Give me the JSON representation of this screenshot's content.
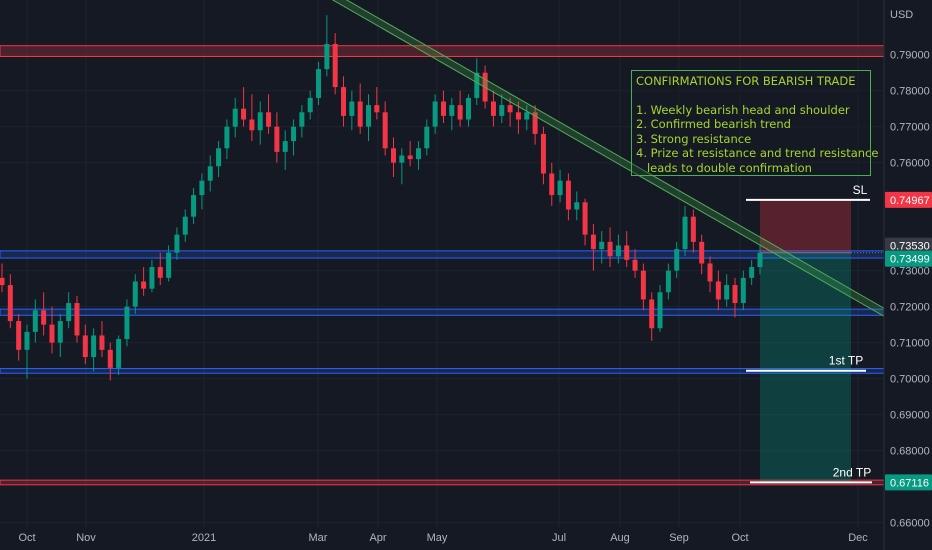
{
  "chart_data": {
    "type": "candlestick",
    "currency_label": "USD",
    "x_ticks": [
      "Oct",
      "Nov",
      "2021",
      "Mar",
      "Apr",
      "May",
      "Jul",
      "Aug",
      "Sep",
      "Oct",
      "Dec"
    ],
    "y_ticks": [
      "0.79000",
      "0.78000",
      "0.77000",
      "0.76000",
      "0.73000",
      "0.72000",
      "0.71000",
      "0.70000",
      "0.69000",
      "0.68000",
      "0.66000"
    ],
    "ylim": [
      0.6585,
      0.8052
    ],
    "price_badges": [
      {
        "label": "0.74967",
        "value": 0.74967,
        "color": "#f23645"
      },
      {
        "label": "0.73530",
        "value": 0.7353,
        "color": "#363a45"
      },
      {
        "label": "0.73499",
        "value": 0.73499,
        "color": "#089981"
      },
      {
        "label": "0.67116",
        "value": 0.67116,
        "color": "#089981"
      }
    ],
    "resistance_zones": [
      {
        "low": 0.7895,
        "high": 0.7925,
        "color": "#f23645"
      },
      {
        "low": 0.6705,
        "high": 0.6718,
        "color": "#f23645"
      }
    ],
    "support_zones": [
      {
        "low": 0.7335,
        "high": 0.7355,
        "color": "#2962ff"
      },
      {
        "low": 0.7176,
        "high": 0.7193,
        "color": "#2962ff"
      },
      {
        "low": 0.7015,
        "high": 0.7028,
        "color": "#2962ff"
      }
    ],
    "trend_resistance": {
      "start": [
        "Sep 2020",
        0.807
      ],
      "end": [
        "Dec 2021",
        0.719
      ],
      "color": "#4caf50"
    },
    "position": {
      "entry": 0.73499,
      "stop_loss": 0.74967,
      "target": 0.67116
    },
    "annotations": [
      {
        "label": "SL",
        "value": 0.74967
      },
      {
        "label": "1st TP",
        "value": 0.7022
      },
      {
        "label": "2nd TP",
        "value": 0.67116
      }
    ],
    "candles": [
      {
        "x": "Sep 2020",
        "o": 0.728,
        "h": 0.732,
        "l": 0.724,
        "c": 0.726
      },
      {
        "x": "Sep 2020",
        "o": 0.726,
        "h": 0.729,
        "l": 0.714,
        "c": 0.716
      },
      {
        "x": "Sep 2020",
        "o": 0.716,
        "h": 0.718,
        "l": 0.705,
        "c": 0.708
      },
      {
        "x": "Oct 2020",
        "o": 0.708,
        "h": 0.715,
        "l": 0.7,
        "c": 0.713
      },
      {
        "x": "Oct 2020",
        "o": 0.713,
        "h": 0.722,
        "l": 0.71,
        "c": 0.719
      },
      {
        "x": "Oct 2020",
        "o": 0.719,
        "h": 0.724,
        "l": 0.712,
        "c": 0.715
      },
      {
        "x": "Oct 2020",
        "o": 0.715,
        "h": 0.72,
        "l": 0.707,
        "c": 0.71
      },
      {
        "x": "Oct 2020",
        "o": 0.71,
        "h": 0.718,
        "l": 0.706,
        "c": 0.716
      },
      {
        "x": "Oct 2020",
        "o": 0.716,
        "h": 0.724,
        "l": 0.714,
        "c": 0.721
      },
      {
        "x": "Oct 2020",
        "o": 0.721,
        "h": 0.723,
        "l": 0.71,
        "c": 0.712
      },
      {
        "x": "Oct 2020",
        "o": 0.712,
        "h": 0.715,
        "l": 0.704,
        "c": 0.706
      },
      {
        "x": "Oct 2020",
        "o": 0.706,
        "h": 0.714,
        "l": 0.702,
        "c": 0.712
      },
      {
        "x": "Nov 2020",
        "o": 0.712,
        "h": 0.716,
        "l": 0.706,
        "c": 0.708
      },
      {
        "x": "Nov 2020",
        "o": 0.708,
        "h": 0.71,
        "l": 0.6995,
        "c": 0.703
      },
      {
        "x": "Nov 2020",
        "o": 0.703,
        "h": 0.712,
        "l": 0.701,
        "c": 0.711
      },
      {
        "x": "Nov 2020",
        "o": 0.711,
        "h": 0.722,
        "l": 0.709,
        "c": 0.72
      },
      {
        "x": "Nov 2020",
        "o": 0.72,
        "h": 0.729,
        "l": 0.718,
        "c": 0.727
      },
      {
        "x": "Nov 2020",
        "o": 0.727,
        "h": 0.731,
        "l": 0.723,
        "c": 0.725
      },
      {
        "x": "Nov 2020",
        "o": 0.725,
        "h": 0.733,
        "l": 0.724,
        "c": 0.731
      },
      {
        "x": "Nov 2020",
        "o": 0.731,
        "h": 0.735,
        "l": 0.726,
        "c": 0.728
      },
      {
        "x": "Dec 2020",
        "o": 0.728,
        "h": 0.737,
        "l": 0.727,
        "c": 0.735
      },
      {
        "x": "Dec 2020",
        "o": 0.735,
        "h": 0.742,
        "l": 0.733,
        "c": 0.74
      },
      {
        "x": "Dec 2020",
        "o": 0.74,
        "h": 0.747,
        "l": 0.738,
        "c": 0.745
      },
      {
        "x": "Dec 2020",
        "o": 0.745,
        "h": 0.753,
        "l": 0.743,
        "c": 0.751
      },
      {
        "x": "Dec 2020",
        "o": 0.751,
        "h": 0.757,
        "l": 0.747,
        "c": 0.755
      },
      {
        "x": "Dec 2020",
        "o": 0.755,
        "h": 0.762,
        "l": 0.752,
        "c": 0.759
      },
      {
        "x": "Dec 2020",
        "o": 0.759,
        "h": 0.766,
        "l": 0.756,
        "c": 0.764
      },
      {
        "x": "Jan 2021",
        "o": 0.764,
        "h": 0.772,
        "l": 0.761,
        "c": 0.77
      },
      {
        "x": "Jan 2021",
        "o": 0.77,
        "h": 0.778,
        "l": 0.767,
        "c": 0.775
      },
      {
        "x": "Jan 2021",
        "o": 0.775,
        "h": 0.781,
        "l": 0.77,
        "c": 0.772
      },
      {
        "x": "Jan 2021",
        "o": 0.772,
        "h": 0.779,
        "l": 0.766,
        "c": 0.769
      },
      {
        "x": "Jan 2021",
        "o": 0.769,
        "h": 0.777,
        "l": 0.765,
        "c": 0.774
      },
      {
        "x": "Jan 2021",
        "o": 0.774,
        "h": 0.779,
        "l": 0.768,
        "c": 0.77
      },
      {
        "x": "Jan 2021",
        "o": 0.77,
        "h": 0.774,
        "l": 0.76,
        "c": 0.763
      },
      {
        "x": "Feb 2021",
        "o": 0.763,
        "h": 0.769,
        "l": 0.758,
        "c": 0.766
      },
      {
        "x": "Feb 2021",
        "o": 0.766,
        "h": 0.772,
        "l": 0.762,
        "c": 0.77
      },
      {
        "x": "Feb 2021",
        "o": 0.77,
        "h": 0.776,
        "l": 0.767,
        "c": 0.774
      },
      {
        "x": "Feb 2021",
        "o": 0.774,
        "h": 0.78,
        "l": 0.772,
        "c": 0.778
      },
      {
        "x": "Feb 2021",
        "o": 0.778,
        "h": 0.788,
        "l": 0.776,
        "c": 0.786
      },
      {
        "x": "Feb 2021",
        "o": 0.786,
        "h": 0.801,
        "l": 0.784,
        "c": 0.793
      },
      {
        "x": "Mar 2021",
        "o": 0.793,
        "h": 0.796,
        "l": 0.779,
        "c": 0.781
      },
      {
        "x": "Mar 2021",
        "o": 0.781,
        "h": 0.784,
        "l": 0.77,
        "c": 0.773
      },
      {
        "x": "Mar 2021",
        "o": 0.773,
        "h": 0.78,
        "l": 0.769,
        "c": 0.777
      },
      {
        "x": "Mar 2021",
        "o": 0.777,
        "h": 0.782,
        "l": 0.768,
        "c": 0.77
      },
      {
        "x": "Mar 2021",
        "o": 0.77,
        "h": 0.779,
        "l": 0.766,
        "c": 0.776
      },
      {
        "x": "Mar 2021",
        "o": 0.776,
        "h": 0.781,
        "l": 0.772,
        "c": 0.774
      },
      {
        "x": "Mar 2021",
        "o": 0.774,
        "h": 0.777,
        "l": 0.762,
        "c": 0.764
      },
      {
        "x": "Apr 2021",
        "o": 0.764,
        "h": 0.767,
        "l": 0.756,
        "c": 0.76
      },
      {
        "x": "Apr 2021",
        "o": 0.76,
        "h": 0.764,
        "l": 0.754,
        "c": 0.762
      },
      {
        "x": "Apr 2021",
        "o": 0.762,
        "h": 0.766,
        "l": 0.759,
        "c": 0.761
      },
      {
        "x": "Apr 2021",
        "o": 0.761,
        "h": 0.766,
        "l": 0.758,
        "c": 0.764
      },
      {
        "x": "Apr 2021",
        "o": 0.764,
        "h": 0.772,
        "l": 0.762,
        "c": 0.77
      },
      {
        "x": "Apr 2021",
        "o": 0.77,
        "h": 0.779,
        "l": 0.768,
        "c": 0.777
      },
      {
        "x": "Apr 2021",
        "o": 0.777,
        "h": 0.78,
        "l": 0.771,
        "c": 0.773
      },
      {
        "x": "May 2021",
        "o": 0.773,
        "h": 0.778,
        "l": 0.769,
        "c": 0.776
      },
      {
        "x": "May 2021",
        "o": 0.776,
        "h": 0.78,
        "l": 0.77,
        "c": 0.772
      },
      {
        "x": "May 2021",
        "o": 0.772,
        "h": 0.779,
        "l": 0.77,
        "c": 0.778
      },
      {
        "x": "May 2021",
        "o": 0.778,
        "h": 0.789,
        "l": 0.776,
        "c": 0.785
      },
      {
        "x": "May 2021",
        "o": 0.785,
        "h": 0.787,
        "l": 0.775,
        "c": 0.777
      },
      {
        "x": "May 2021",
        "o": 0.777,
        "h": 0.78,
        "l": 0.77,
        "c": 0.773
      },
      {
        "x": "May 2021",
        "o": 0.773,
        "h": 0.779,
        "l": 0.771,
        "c": 0.776
      },
      {
        "x": "Jun 2021",
        "o": 0.776,
        "h": 0.778,
        "l": 0.77,
        "c": 0.774
      },
      {
        "x": "Jun 2021",
        "o": 0.774,
        "h": 0.777,
        "l": 0.768,
        "c": 0.772
      },
      {
        "x": "Jun 2021",
        "o": 0.772,
        "h": 0.776,
        "l": 0.769,
        "c": 0.774
      },
      {
        "x": "Jun 2021",
        "o": 0.774,
        "h": 0.776,
        "l": 0.765,
        "c": 0.768
      },
      {
        "x": "Jun 2021",
        "o": 0.768,
        "h": 0.77,
        "l": 0.754,
        "c": 0.757
      },
      {
        "x": "Jun 2021",
        "o": 0.757,
        "h": 0.76,
        "l": 0.748,
        "c": 0.751
      },
      {
        "x": "Jul 2021",
        "o": 0.751,
        "h": 0.758,
        "l": 0.749,
        "c": 0.755
      },
      {
        "x": "Jul 2021",
        "o": 0.755,
        "h": 0.757,
        "l": 0.744,
        "c": 0.747
      },
      {
        "x": "Jul 2021",
        "o": 0.747,
        "h": 0.752,
        "l": 0.744,
        "c": 0.749
      },
      {
        "x": "Jul 2021",
        "o": 0.749,
        "h": 0.75,
        "l": 0.737,
        "c": 0.74
      },
      {
        "x": "Jul 2021",
        "o": 0.74,
        "h": 0.743,
        "l": 0.73,
        "c": 0.736
      },
      {
        "x": "Jul 2021",
        "o": 0.736,
        "h": 0.741,
        "l": 0.732,
        "c": 0.738
      },
      {
        "x": "Jul 2021",
        "o": 0.738,
        "h": 0.742,
        "l": 0.731,
        "c": 0.734
      },
      {
        "x": "Aug 2021",
        "o": 0.734,
        "h": 0.74,
        "l": 0.732,
        "c": 0.737
      },
      {
        "x": "Aug 2021",
        "o": 0.737,
        "h": 0.741,
        "l": 0.731,
        "c": 0.733
      },
      {
        "x": "Aug 2021",
        "o": 0.733,
        "h": 0.736,
        "l": 0.728,
        "c": 0.73
      },
      {
        "x": "Aug 2021",
        "o": 0.73,
        "h": 0.732,
        "l": 0.719,
        "c": 0.722
      },
      {
        "x": "Aug 2021",
        "o": 0.722,
        "h": 0.724,
        "l": 0.7105,
        "c": 0.714
      },
      {
        "x": "Aug 2021",
        "o": 0.714,
        "h": 0.726,
        "l": 0.713,
        "c": 0.724
      },
      {
        "x": "Aug 2021",
        "o": 0.724,
        "h": 0.732,
        "l": 0.722,
        "c": 0.73
      },
      {
        "x": "Sep 2021",
        "o": 0.73,
        "h": 0.738,
        "l": 0.728,
        "c": 0.736
      },
      {
        "x": "Sep 2021",
        "o": 0.736,
        "h": 0.748,
        "l": 0.734,
        "c": 0.745
      },
      {
        "x": "Sep 2021",
        "o": 0.745,
        "h": 0.747,
        "l": 0.735,
        "c": 0.738
      },
      {
        "x": "Sep 2021",
        "o": 0.738,
        "h": 0.74,
        "l": 0.729,
        "c": 0.732
      },
      {
        "x": "Sep 2021",
        "o": 0.732,
        "h": 0.734,
        "l": 0.724,
        "c": 0.727
      },
      {
        "x": "Sep 2021",
        "o": 0.727,
        "h": 0.73,
        "l": 0.719,
        "c": 0.722
      },
      {
        "x": "Sep 2021",
        "o": 0.722,
        "h": 0.729,
        "l": 0.72,
        "c": 0.726
      },
      {
        "x": "Oct 2021",
        "o": 0.726,
        "h": 0.728,
        "l": 0.717,
        "c": 0.721
      },
      {
        "x": "Oct 2021",
        "o": 0.721,
        "h": 0.73,
        "l": 0.719,
        "c": 0.728
      },
      {
        "x": "Oct 2021",
        "o": 0.728,
        "h": 0.733,
        "l": 0.726,
        "c": 0.731
      },
      {
        "x": "Oct 2021",
        "o": 0.731,
        "h": 0.737,
        "l": 0.729,
        "c": 0.735
      }
    ]
  },
  "confirmation_box": {
    "title": "CONFIRMATIONS FOR BEARISH TRADE",
    "items": [
      "1. Weekly bearish head and shoulder",
      "2. Confirmed bearish trend",
      "3. Strong resistance",
      "4. Prize at resistance and trend resistance",
      "   leads to double confirmation"
    ],
    "color": "#a5d62b"
  },
  "colors": {
    "up": "#089981",
    "down": "#f23645",
    "background": "#151924",
    "trendline": "#4caf50"
  }
}
